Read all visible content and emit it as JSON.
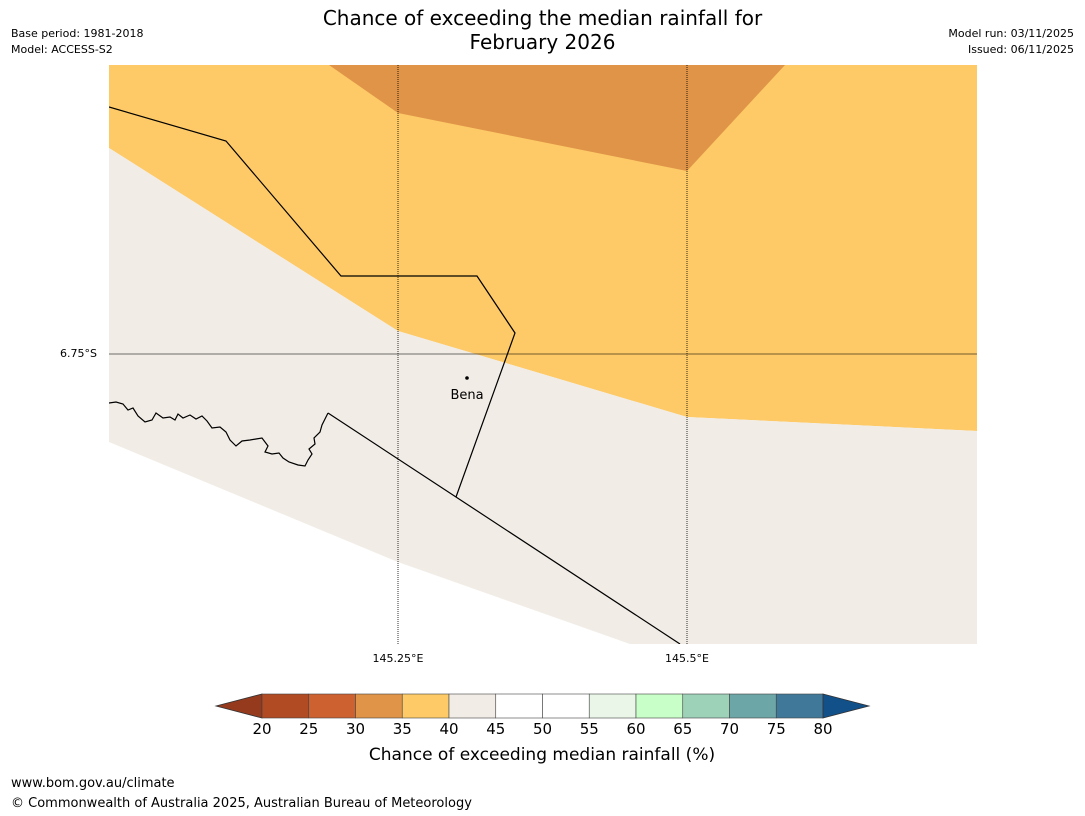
{
  "title": {
    "line1": "Chance of exceeding the median rainfall for",
    "line2": "February 2026"
  },
  "meta": {
    "base_period": "Base period: 1981-2018",
    "model": "Model: ACCESS-S2",
    "model_run": "Model run: 03/11/2025",
    "issued": "Issued: 06/11/2025"
  },
  "map": {
    "gridlines": {
      "lon_labels": [
        "145.25°E",
        "145.5°E"
      ],
      "lat_labels": [
        "6.75°S"
      ]
    },
    "place": {
      "name": "Bena"
    },
    "colors": {
      "30": "#e09447",
      "35": "#fdca67",
      "40": "#f1ece6",
      "coast": "#000000",
      "grid": "#000000"
    }
  },
  "colorbar": {
    "title": "Chance of exceeding median rainfall (%)",
    "labels": [
      "20",
      "25",
      "30",
      "35",
      "40",
      "45",
      "50",
      "55",
      "60",
      "65",
      "70",
      "75",
      "80"
    ],
    "low_extend_color": "#963a1e",
    "high_extend_color": "#125089",
    "bins": [
      {
        "range": "20-25",
        "color": "#b14b24"
      },
      {
        "range": "25-30",
        "color": "#cd6230"
      },
      {
        "range": "30-35",
        "color": "#e09447"
      },
      {
        "range": "35-40",
        "color": "#fdca67"
      },
      {
        "range": "40-45",
        "color": "#f1ece6"
      },
      {
        "range": "45-50",
        "color": "#ffffff"
      },
      {
        "range": "50-55",
        "color": "#ffffff"
      },
      {
        "range": "55-60",
        "color": "#eaf7e8"
      },
      {
        "range": "60-65",
        "color": "#c8fec8"
      },
      {
        "range": "65-70",
        "color": "#9dd1b8"
      },
      {
        "range": "70-75",
        "color": "#6ca6a6"
      },
      {
        "range": "75-80",
        "color": "#3f7899"
      }
    ]
  },
  "footer": {
    "url": "www.bom.gov.au/climate",
    "copyright": "© Commonwealth of Australia 2025, Australian Bureau of Meteorology"
  }
}
